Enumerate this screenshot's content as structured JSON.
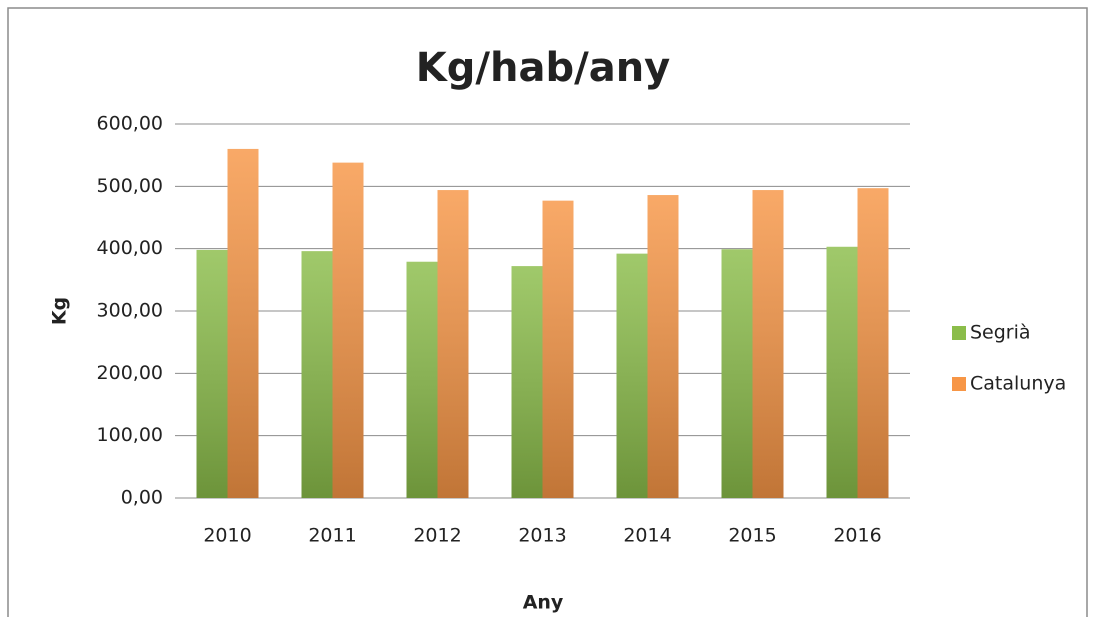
{
  "chart_data": {
    "type": "bar",
    "title": "Kg/hab/any",
    "x_label": "Any",
    "y_label": "Kg",
    "categories": [
      "2010",
      "2011",
      "2012",
      "2013",
      "2014",
      "2015",
      "2016"
    ],
    "series": [
      {
        "name": "Segrià",
        "color": "#8bbd4a",
        "values": [
          398,
          396,
          379,
          372,
          392,
          399,
          403
        ]
      },
      {
        "name": "Catalunya",
        "color": "#f79646",
        "values": [
          560,
          538,
          494,
          477,
          486,
          494,
          497
        ]
      }
    ],
    "ylim": [
      0,
      600
    ],
    "yticks": [
      {
        "value": 0,
        "label": "0,00"
      },
      {
        "value": 100,
        "label": "100,00"
      },
      {
        "value": 200,
        "label": "200,00"
      },
      {
        "value": 300,
        "label": "300,00"
      },
      {
        "value": 400,
        "label": "400,00"
      },
      {
        "value": 500,
        "label": "500,00"
      },
      {
        "value": 600,
        "label": "600,00"
      }
    ],
    "grid": true,
    "legend": "right"
  }
}
